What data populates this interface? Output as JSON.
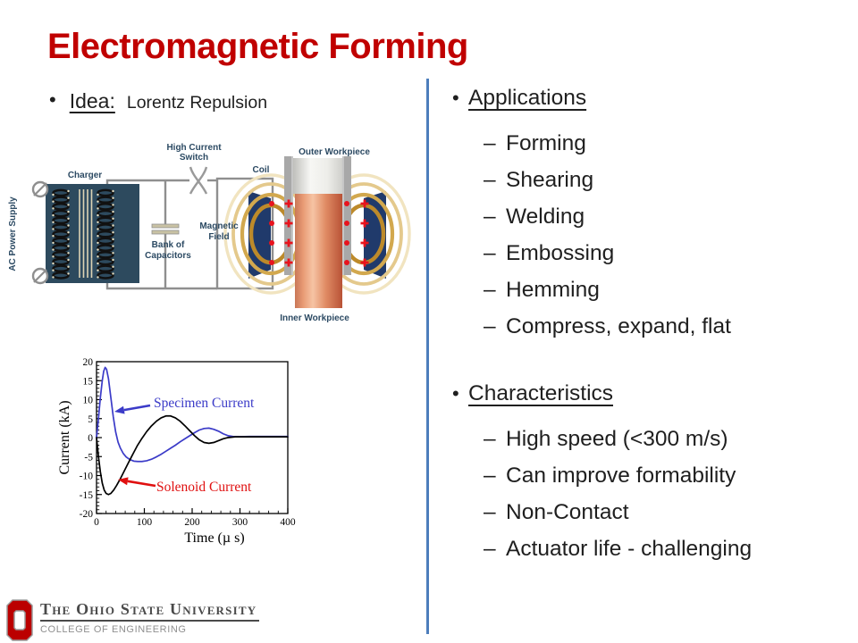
{
  "slide": {
    "title": "Electromagnetic Forming",
    "title_color": "#C00000",
    "divider_color": "#4D7EBC",
    "background": "#FFFFFF"
  },
  "idea": {
    "bullet": "•",
    "label": "Idea:",
    "text": "Lorentz Repulsion"
  },
  "diagram": {
    "labels": {
      "ac_power_supply": "AC Power Supply",
      "charger": "Charger",
      "switch_line1": "High Current",
      "switch_line2": "Switch",
      "capacitors_line1": "Bank of",
      "capacitors_line2": "Capacitors",
      "magnetic_line1": "Magnetic",
      "magnetic_line2": "Field",
      "coil": "Coil",
      "outer_workpiece": "Outer Workpiece",
      "inner_workpiece": "Inner Workpiece"
    }
  },
  "chart_data": {
    "type": "line",
    "title": "",
    "xlabel": "Time  (µ s)",
    "ylabel": "Current  (kA)",
    "xlim": [
      0,
      400
    ],
    "ylim": [
      -20,
      20
    ],
    "x_ticks": [
      0,
      100,
      200,
      300,
      400
    ],
    "y_ticks": [
      -20,
      -15,
      -10,
      -5,
      0,
      5,
      10,
      15,
      20
    ],
    "x_minor_step": 20,
    "y_minor_step": 1,
    "grid": false,
    "series": [
      {
        "name": "Specimen Current",
        "color": "#3B3BC8",
        "x": [
          0,
          4,
          8,
          12,
          15,
          18,
          21,
          25,
          30,
          35,
          40,
          45,
          50,
          56,
          62,
          70,
          78,
          86,
          95,
          105,
          115,
          125,
          135,
          145,
          155,
          165,
          175,
          185,
          195,
          205,
          215,
          225,
          235,
          245,
          255,
          265,
          275,
          285,
          300,
          320,
          350,
          400
        ],
        "y": [
          0,
          5,
          10.5,
          15,
          17.5,
          18.5,
          18,
          15.5,
          10.5,
          5.5,
          1.5,
          -1.2,
          -2.8,
          -4.2,
          -5.1,
          -5.8,
          -6.2,
          -6.3,
          -6.3,
          -6.1,
          -5.7,
          -5.1,
          -4.4,
          -3.6,
          -2.8,
          -2,
          -1.1,
          -0.3,
          0.5,
          1.3,
          2,
          2.4,
          2.5,
          2.2,
          1.7,
          1,
          0.5,
          0.3,
          0.25,
          0.3,
          0.3,
          0.3
        ]
      },
      {
        "name": "Solenoid Current",
        "color": "#000000",
        "x": [
          0,
          4,
          8,
          12,
          16,
          20,
          25,
          30,
          36,
          42,
          50,
          58,
          66,
          75,
          85,
          95,
          105,
          115,
          125,
          135,
          145,
          155,
          165,
          175,
          185,
          195,
          205,
          215,
          225,
          235,
          245,
          255,
          265,
          275,
          290,
          310,
          350,
          400
        ],
        "y": [
          0,
          -5,
          -9,
          -12,
          -13.8,
          -14.7,
          -15,
          -14.7,
          -13.8,
          -12.6,
          -10.8,
          -8.8,
          -6.8,
          -4.6,
          -2.2,
          -0.2,
          1.6,
          3.1,
          4.3,
          5.2,
          5.7,
          5.7,
          5.2,
          4.3,
          3.1,
          1.8,
          0.5,
          -0.6,
          -1.3,
          -1.5,
          -1.3,
          -0.8,
          -0.3,
          0,
          0.2,
          0.2,
          0.2,
          0.2
        ]
      }
    ],
    "annotations": [
      {
        "text": "Specimen Current",
        "color": "#3B3BC8"
      },
      {
        "text": "Solenoid Current",
        "color": "#E01010"
      }
    ]
  },
  "right": {
    "bullet": "•",
    "dash": "–",
    "sections": [
      {
        "heading": "Applications",
        "items": [
          "Forming",
          "Shearing",
          "Welding",
          "Embossing",
          "Hemming",
          "Compress, expand, flat"
        ]
      },
      {
        "heading": "Characteristics",
        "items": [
          "High speed (<300 m/s)",
          "Can improve formability",
          "Non-Contact",
          "Actuator life - challenging"
        ]
      }
    ]
  },
  "footer": {
    "university": "The Ohio State University",
    "college": "COLLEGE OF ENGINEERING"
  }
}
